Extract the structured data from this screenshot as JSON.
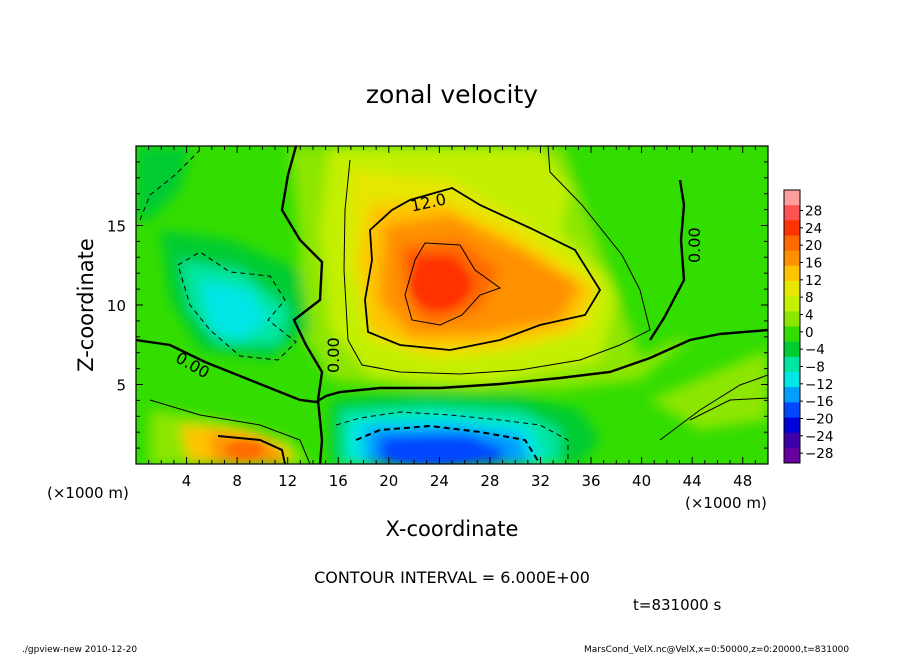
{
  "chart_data": {
    "type": "heatmap",
    "title": "zonal velocity",
    "xlabel": "X-coordinate",
    "ylabel": "Z-coordinate",
    "x_unit": "(×1000 m)",
    "y_unit": "(×1000 m)",
    "xlim": [
      0,
      50
    ],
    "ylim": [
      0,
      20
    ],
    "x_ticks": [
      "4",
      "8",
      "12",
      "16",
      "20",
      "24",
      "28",
      "32",
      "36",
      "40",
      "44",
      "48"
    ],
    "y_ticks": [
      "5",
      "10",
      "15"
    ],
    "contour_interval": "CONTOUR INTERVAL = 6.000E+00",
    "time_label": "t=831000 s",
    "contour_labels": [
      "12.0",
      "0.00",
      "0.00",
      "0.00"
    ],
    "colorbar": {
      "labels": [
        "28",
        "24",
        "20",
        "16",
        "12",
        "8",
        "4",
        "0",
        "−4",
        "−8",
        "−12",
        "−16",
        "−20",
        "−24",
        "−28"
      ],
      "colors": [
        "#ff9d9d",
        "#ff5252",
        "#ff3300",
        "#ff6a00",
        "#ff9100",
        "#ffc300",
        "#e6e600",
        "#c3f000",
        "#8ce600",
        "#33dd00",
        "#00cc33",
        "#00e6a0",
        "#00e6e6",
        "#009eff",
        "#0047ff",
        "#0000d9",
        "#3d00a8",
        "#6600a0"
      ]
    },
    "features": [
      {
        "type": "max",
        "x": 24,
        "z": 11,
        "value": 20
      },
      {
        "type": "min",
        "x": 25,
        "z": 1,
        "value": -20
      },
      {
        "type": "max",
        "x": 9,
        "z": 1,
        "value": 16
      },
      {
        "type": "min",
        "x": 9,
        "z": 9,
        "value": -8
      }
    ]
  },
  "footer": {
    "left": "./gpview-new  2010-12-20",
    "right": "MarsCond_VelX.nc@VelX,x=0:50000,z=0:20000,t=831000"
  }
}
